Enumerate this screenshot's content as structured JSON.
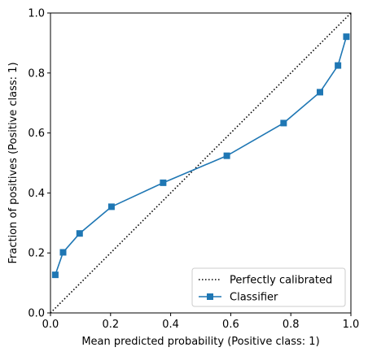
{
  "chart_data": {
    "type": "line",
    "title": "",
    "xlabel": "Mean predicted probability (Positive class: 1)",
    "ylabel": "Fraction of positives (Positive class: 1)",
    "xlim": [
      0,
      1
    ],
    "ylim": [
      0,
      1
    ],
    "x_ticks": [
      "0.0",
      "0.2",
      "0.4",
      "0.6",
      "0.8",
      "1.0"
    ],
    "y_ticks": [
      "0.0",
      "0.2",
      "0.4",
      "0.6",
      "0.8",
      "1.0"
    ],
    "grid": false,
    "legend_position": "bottom-right",
    "series": [
      {
        "name": "Perfectly calibrated",
        "style": "dotted",
        "color": "#000000",
        "x": [
          0,
          1
        ],
        "y": [
          0,
          1
        ]
      },
      {
        "name": "Classifier",
        "style": "solid",
        "marker": "square",
        "color": "#1f77b4",
        "x": [
          0.016,
          0.042,
          0.097,
          0.203,
          0.375,
          0.587,
          0.776,
          0.897,
          0.957,
          0.985
        ],
        "y": [
          0.127,
          0.202,
          0.265,
          0.354,
          0.434,
          0.524,
          0.633,
          0.736,
          0.825,
          0.921
        ]
      }
    ]
  }
}
